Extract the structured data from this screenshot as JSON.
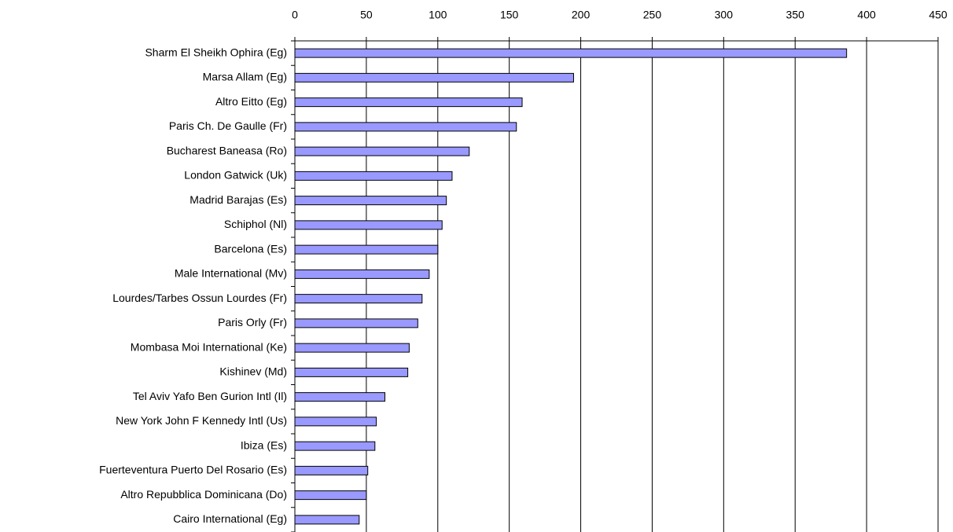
{
  "chart_data": {
    "type": "bar",
    "orientation": "horizontal",
    "categories": [
      "Sharm El Sheikh Ophira (Eg)",
      "Marsa Allam (Eg)",
      "Altro Eitto (Eg)",
      "Paris Ch. De Gaulle (Fr)",
      "Bucharest Baneasa (Ro)",
      "London Gatwick (Uk)",
      "Madrid Barajas (Es)",
      "Schiphol (Nl)",
      "Barcelona (Es)",
      "Male International (Mv)",
      "Lourdes/Tarbes Ossun Lourdes (Fr)",
      "Paris Orly (Fr)",
      "Mombasa Moi International (Ke)",
      "Kishinev (Md)",
      "Tel Aviv Yafo Ben Gurion Intl (Il)",
      "New York John F Kennedy Intl (Us)",
      "Ibiza (Es)",
      "Fuerteventura Puerto Del Rosario (Es)",
      "Altro Repubblica Dominicana (Do)",
      "Cairo International (Eg)"
    ],
    "values": [
      386,
      195,
      159,
      155,
      122,
      110,
      106,
      103,
      100,
      94,
      89,
      86,
      80,
      79,
      63,
      57,
      56,
      51,
      50,
      45
    ],
    "color": "#9999ff",
    "xlim": [
      0,
      450
    ],
    "xticks": [
      0,
      50,
      100,
      150,
      200,
      250,
      300,
      350,
      400,
      450
    ],
    "grid": true
  }
}
